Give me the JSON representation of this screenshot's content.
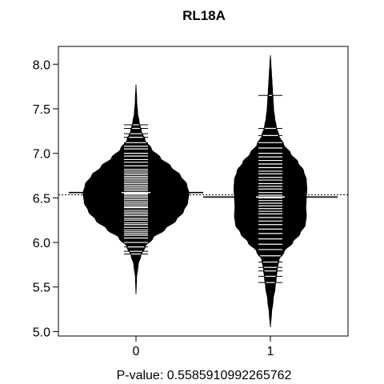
{
  "chart_data": {
    "type": "beanplot",
    "title": "RL18A",
    "xlabel": "P-value: 0.5585910992265762",
    "ylabel": "",
    "categories": [
      "0",
      "1"
    ],
    "ylim": [
      4.95,
      8.2
    ],
    "yticks": [
      "5.0",
      "5.5",
      "6.0",
      "6.5",
      "7.0",
      "7.5",
      "8.0"
    ],
    "overall_mean": 6.535,
    "series": [
      {
        "name": "0",
        "mean": 6.56,
        "range": [
          5.42,
          7.77
        ],
        "density": [
          [
            5.42,
            0.0
          ],
          [
            5.6,
            0.01
          ],
          [
            5.75,
            0.04
          ],
          [
            5.85,
            0.09
          ],
          [
            5.95,
            0.17
          ],
          [
            6.05,
            0.32
          ],
          [
            6.15,
            0.55
          ],
          [
            6.25,
            0.76
          ],
          [
            6.35,
            0.9
          ],
          [
            6.45,
            0.98
          ],
          [
            6.55,
            1.0
          ],
          [
            6.65,
            0.96
          ],
          [
            6.75,
            0.84
          ],
          [
            6.85,
            0.66
          ],
          [
            6.95,
            0.46
          ],
          [
            7.05,
            0.29
          ],
          [
            7.15,
            0.17
          ],
          [
            7.25,
            0.1
          ],
          [
            7.35,
            0.06
          ],
          [
            7.45,
            0.03
          ],
          [
            7.6,
            0.012
          ],
          [
            7.77,
            0.0
          ]
        ],
        "observations": [
          5.87,
          5.9,
          5.95,
          6.0,
          6.05,
          6.08,
          6.1,
          6.12,
          6.14,
          6.17,
          6.2,
          6.22,
          6.25,
          6.27,
          6.3,
          6.32,
          6.34,
          6.36,
          6.39,
          6.4,
          6.42,
          6.44,
          6.46,
          6.48,
          6.5,
          6.52,
          6.54,
          6.55,
          6.56,
          6.58,
          6.6,
          6.62,
          6.64,
          6.66,
          6.68,
          6.7,
          6.72,
          6.74,
          6.76,
          6.78,
          6.8,
          6.82,
          6.86,
          6.9,
          6.93,
          6.97,
          7.0,
          7.05,
          7.08,
          7.12,
          7.18,
          7.22,
          7.28,
          7.32
        ]
      },
      {
        "name": "1",
        "mean": 6.51,
        "range": [
          5.05,
          8.1
        ],
        "density": [
          [
            5.05,
            0.0
          ],
          [
            5.2,
            0.02
          ],
          [
            5.35,
            0.05
          ],
          [
            5.5,
            0.09
          ],
          [
            5.6,
            0.11
          ],
          [
            5.7,
            0.13
          ],
          [
            5.8,
            0.16
          ],
          [
            5.9,
            0.26
          ],
          [
            6.0,
            0.42
          ],
          [
            6.1,
            0.56
          ],
          [
            6.2,
            0.66
          ],
          [
            6.3,
            0.68
          ],
          [
            6.4,
            0.67
          ],
          [
            6.5,
            0.68
          ],
          [
            6.6,
            0.69
          ],
          [
            6.7,
            0.68
          ],
          [
            6.8,
            0.63
          ],
          [
            6.9,
            0.52
          ],
          [
            7.0,
            0.38
          ],
          [
            7.1,
            0.25
          ],
          [
            7.2,
            0.16
          ],
          [
            7.3,
            0.11
          ],
          [
            7.4,
            0.08
          ],
          [
            7.5,
            0.06
          ],
          [
            7.6,
            0.05
          ],
          [
            7.7,
            0.04
          ],
          [
            7.8,
            0.03
          ],
          [
            7.9,
            0.02
          ],
          [
            8.0,
            0.01
          ],
          [
            8.1,
            0.0
          ]
        ],
        "observations": [
          5.55,
          5.62,
          5.68,
          5.72,
          5.78,
          5.85,
          5.92,
          5.98,
          6.04,
          6.1,
          6.15,
          6.2,
          6.24,
          6.28,
          6.32,
          6.35,
          6.38,
          6.41,
          6.44,
          6.47,
          6.5,
          6.53,
          6.56,
          6.6,
          6.63,
          6.66,
          6.7,
          6.73,
          6.77,
          6.8,
          6.84,
          6.88,
          6.92,
          6.96,
          7.0,
          7.06,
          7.12,
          7.2,
          7.28,
          7.65
        ]
      }
    ]
  }
}
